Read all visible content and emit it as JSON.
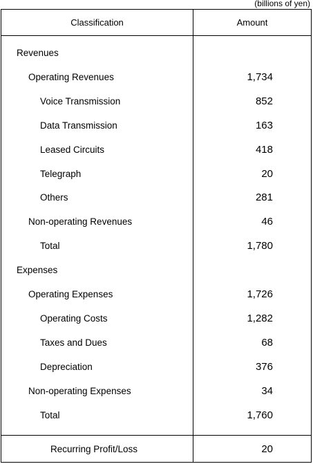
{
  "unit_note": "(billions of yen)",
  "headers": {
    "classification": "Classification",
    "amount": "Amount"
  },
  "rows": [
    {
      "label": "Revenues",
      "value": "",
      "level": 0
    },
    {
      "label": "Operating Revenues",
      "value": "1,734",
      "level": 1
    },
    {
      "label": "Voice Transmission",
      "value": "852",
      "level": 2
    },
    {
      "label": "Data Transmission",
      "value": "163",
      "level": 2
    },
    {
      "label": "Leased Circuits",
      "value": "418",
      "level": 2
    },
    {
      "label": "Telegraph",
      "value": "20",
      "level": 2
    },
    {
      "label": "Others",
      "value": "281",
      "level": 2
    },
    {
      "label": "Non-operating Revenues",
      "value": "46",
      "level": 1
    },
    {
      "label": "Total",
      "value": "1,780",
      "level": 2
    },
    {
      "label": "Expenses",
      "value": "",
      "level": 0
    },
    {
      "label": "Operating Expenses",
      "value": "1,726",
      "level": 1
    },
    {
      "label": "Operating Costs",
      "value": "1,282",
      "level": 2
    },
    {
      "label": "Taxes and Dues",
      "value": "68",
      "level": 2
    },
    {
      "label": "Depreciation",
      "value": "376",
      "level": 2
    },
    {
      "label": "Non-operating Expenses",
      "value": "34",
      "level": 1
    },
    {
      "label": "Total",
      "value": "1,760",
      "level": 2
    }
  ],
  "summary": {
    "label": "Recurring Profit/Loss",
    "value": "20"
  }
}
